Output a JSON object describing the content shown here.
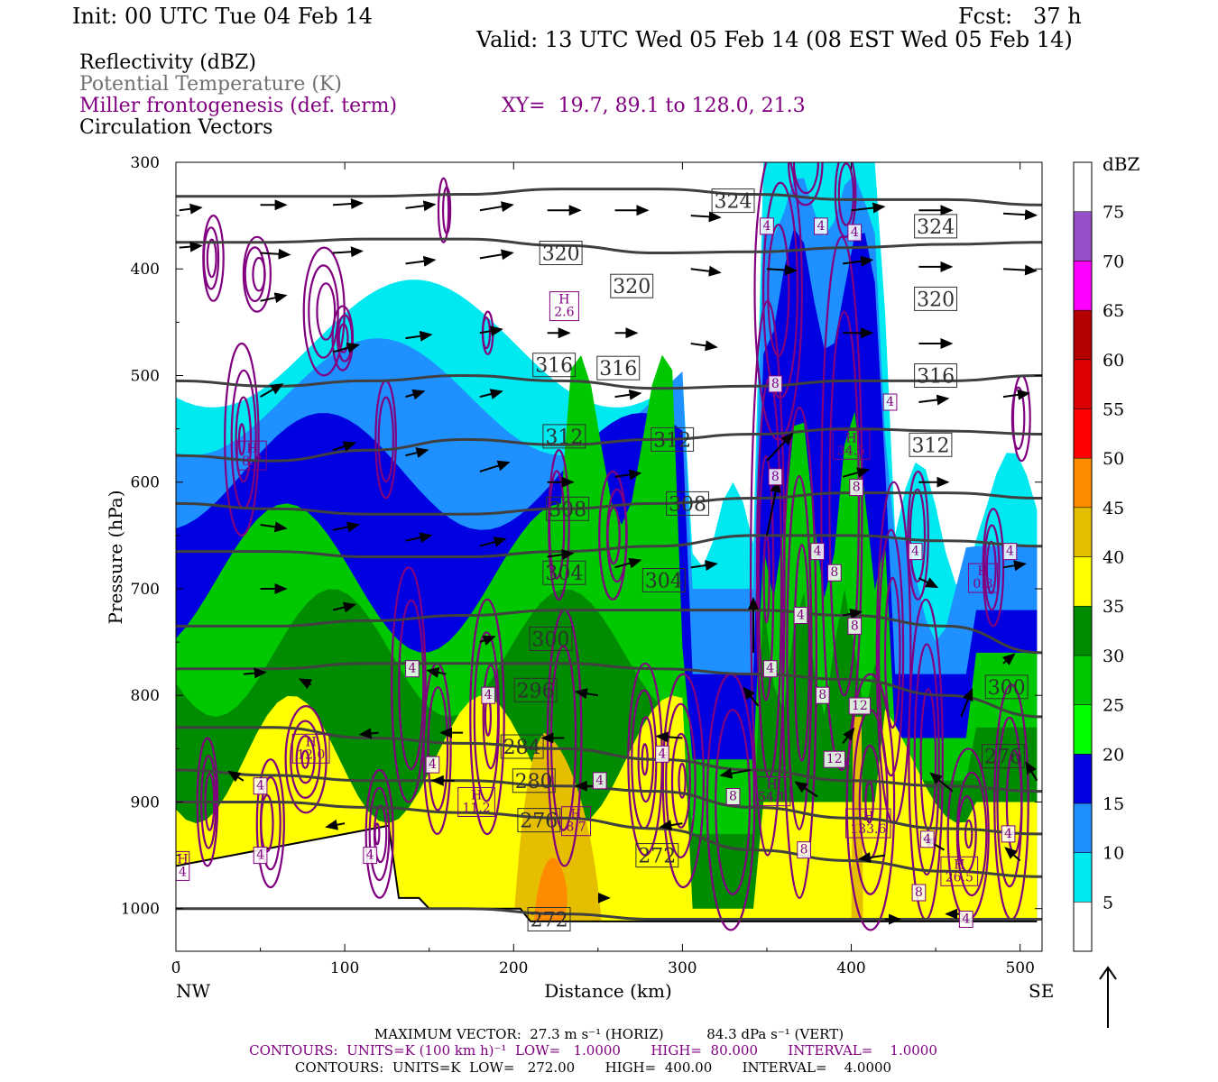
{
  "header": {
    "init": "Init: 00 UTC Tue 04 Feb 14",
    "fcst": "Fcst:   37 h",
    "valid": "Valid: 13 UTC Wed 05 Feb 14 (08 EST Wed 05 Feb 14)"
  },
  "fields": {
    "reflectivity": "Reflectivity (dBZ)",
    "theta": "Potential Temperature (K)",
    "frontogenesis": "Miller frontogenesis (def. term)",
    "xy": "XY=  19.7, 89.1 to 128.0, 21.3",
    "vectors": "Circulation Vectors"
  },
  "colors": {
    "theta": "#404040",
    "fronto": "#800080",
    "vector": "#000000"
  },
  "colorbar": {
    "title": "dBZ",
    "levels": [
      5,
      10,
      15,
      20,
      25,
      30,
      35,
      40,
      45,
      50,
      55,
      60,
      65,
      70,
      75
    ],
    "colors": [
      "#ffffff",
      "#00e8f0",
      "#1e90ff",
      "#0000e0",
      "#00ff00",
      "#00c800",
      "#008c00",
      "#ffff00",
      "#e6be00",
      "#ff8c00",
      "#ff0000",
      "#dc0000",
      "#b40000",
      "#ff00ff",
      "#9650c8",
      "#ffffff"
    ]
  },
  "footer": {
    "max_vector": "MAXIMUM VECTOR:  27.3 m s⁻¹ (HORIZ)          84.3 dPa s⁻¹ (VERT)",
    "contours1": "CONTOURS:  UNITS=K (100 km h)⁻¹  LOW=   1.0000       HIGH=  80.000       INTERVAL=    1.0000",
    "contours2": "CONTOURS:  UNITS=K  LOW=   272.00       HIGH=  400.00       INTERVAL=    4.0000"
  },
  "chart_data": {
    "type": "cross-section",
    "xlabel": "Distance (km)",
    "ylabel": "Pressure (hPa)",
    "xlim": [
      0,
      513
    ],
    "ylim": [
      1040,
      300
    ],
    "x_ticks": [
      0,
      100,
      200,
      300,
      400,
      500
    ],
    "y_ticks": [
      300,
      400,
      500,
      600,
      700,
      800,
      900,
      1000
    ],
    "x_end_labels": {
      "left": "NW",
      "right": "SE"
    },
    "theta_isentropes": [
      {
        "label": "324",
        "p": [
          332,
          332,
          332,
          330,
          325,
          325,
          330,
          335,
          335,
          340
        ]
      },
      {
        "label": "320",
        "p": [
          375,
          375,
          372,
          372,
          378,
          385,
          384,
          380,
          377,
          375
        ]
      },
      {
        "label": "316",
        "p": [
          505,
          510,
          505,
          500,
          505,
          512,
          510,
          505,
          505,
          500
        ]
      },
      {
        "label": "312",
        "p": [
          575,
          580,
          570,
          560,
          565,
          560,
          555,
          550,
          552,
          555
        ]
      },
      {
        "label": "308",
        "p": [
          620,
          625,
          630,
          630,
          625,
          620,
          615,
          610,
          610,
          615
        ]
      },
      {
        "label": "304",
        "p": [
          665,
          665,
          670,
          670,
          665,
          660,
          650,
          650,
          655,
          660
        ]
      },
      {
        "label": "300",
        "p": [
          735,
          735,
          730,
          725,
          720,
          720,
          720,
          725,
          735,
          760
        ]
      },
      {
        "label": "296",
        "p": [
          775,
          775,
          770,
          770,
          770,
          775,
          780,
          785,
          800,
          820
        ]
      },
      {
        "label": "284",
        "p": [
          830,
          830,
          840,
          845,
          850,
          860,
          870,
          880,
          885,
          890
        ]
      },
      {
        "label": "280",
        "p": [
          870,
          875,
          880,
          880,
          885,
          890,
          905,
          915,
          925,
          930
        ]
      },
      {
        "label": "276",
        "p": [
          900,
          900,
          905,
          910,
          915,
          925,
          945,
          955,
          965,
          970
        ]
      },
      {
        "label": "272",
        "p": [
          1000,
          1000,
          1000,
          1000,
          1005,
          1010,
          1010,
          1010,
          1010,
          1010
        ]
      }
    ],
    "theta_x": [
      0,
      57,
      114,
      171,
      228,
      285,
      342,
      399,
      456,
      513
    ],
    "theta_labels_shown": [
      {
        "text": "324",
        "x": 330,
        "p": 336
      },
      {
        "text": "324",
        "x": 450,
        "p": 360
      },
      {
        "text": "320",
        "x": 228,
        "p": 385
      },
      {
        "text": "320",
        "x": 270,
        "p": 416
      },
      {
        "text": "320",
        "x": 450,
        "p": 428
      },
      {
        "text": "316",
        "x": 224,
        "p": 490
      },
      {
        "text": "316",
        "x": 262,
        "p": 493
      },
      {
        "text": "316",
        "x": 450,
        "p": 500
      },
      {
        "text": "312",
        "x": 230,
        "p": 557
      },
      {
        "text": "312",
        "x": 294,
        "p": 560
      },
      {
        "text": "312",
        "x": 447,
        "p": 565
      },
      {
        "text": "308",
        "x": 232,
        "p": 625
      },
      {
        "text": "308",
        "x": 303,
        "p": 620
      },
      {
        "text": "304",
        "x": 230,
        "p": 685
      },
      {
        "text": "304",
        "x": 289,
        "p": 692
      },
      {
        "text": "300",
        "x": 222,
        "p": 747
      },
      {
        "text": "300",
        "x": 492,
        "p": 792
      },
      {
        "text": "296",
        "x": 213,
        "p": 795
      },
      {
        "text": "284",
        "x": 205,
        "p": 848
      },
      {
        "text": "280",
        "x": 212,
        "p": 880
      },
      {
        "text": "276",
        "x": 215,
        "p": 917
      },
      {
        "text": "272",
        "x": 285,
        "p": 950
      },
      {
        "text": "272",
        "x": 221,
        "p": 1010
      },
      {
        "text": "276",
        "x": 490,
        "p": 857
      }
    ],
    "fronto_extrema": [
      {
        "text": "H\n2.6",
        "x": 230,
        "p": 435
      },
      {
        "text": "H\n12.0",
        "x": 80,
        "p": 850
      },
      {
        "text": "H\n11.2",
        "x": 178,
        "p": 900
      },
      {
        "text": "H\n8.7",
        "x": 237,
        "p": 918
      },
      {
        "text": "H\n54.1",
        "x": 353,
        "p": 890
      },
      {
        "text": "H\n34.5",
        "x": 400,
        "p": 565
      },
      {
        "text": "H\n133.6",
        "x": 410,
        "p": 920
      },
      {
        "text": "H\n26.5",
        "x": 464,
        "p": 965
      },
      {
        "text": "H\n4",
        "x": 4,
        "p": 960
      },
      {
        "text": "H\n8.7",
        "x": 45,
        "p": 575
      },
      {
        "text": "H\n0.3",
        "x": 478,
        "p": 690
      }
    ],
    "fronto_labels_4": [
      {
        "x": 350,
        "p": 360
      },
      {
        "x": 382,
        "p": 360
      },
      {
        "x": 402,
        "p": 366
      },
      {
        "x": 423,
        "p": 525
      },
      {
        "x": 380,
        "p": 665
      },
      {
        "x": 438,
        "p": 665
      },
      {
        "x": 494,
        "p": 665
      },
      {
        "x": 370,
        "p": 725
      },
      {
        "x": 352,
        "p": 775
      },
      {
        "x": 140,
        "p": 775
      },
      {
        "x": 185,
        "p": 800
      },
      {
        "x": 152,
        "p": 865
      },
      {
        "x": 50,
        "p": 885
      },
      {
        "x": 50,
        "p": 950
      },
      {
        "x": 115,
        "p": 950
      },
      {
        "x": 251,
        "p": 880
      },
      {
        "x": 288,
        "p": 855
      },
      {
        "x": 445,
        "p": 935
      },
      {
        "x": 493,
        "p": 930
      },
      {
        "x": 468,
        "p": 1010
      }
    ],
    "fronto_labels_8": [
      {
        "x": 355,
        "p": 595
      },
      {
        "x": 403,
        "p": 605
      },
      {
        "x": 390,
        "p": 685
      },
      {
        "x": 402,
        "p": 735
      },
      {
        "x": 383,
        "p": 800
      },
      {
        "x": 330,
        "p": 895
      },
      {
        "x": 372,
        "p": 945
      },
      {
        "x": 440,
        "p": 985
      },
      {
        "x": 355,
        "p": 508
      }
    ],
    "fronto_labels_12": [
      {
        "x": 405,
        "p": 810
      },
      {
        "x": 390,
        "p": 860
      }
    ],
    "vector_samples": [
      {
        "x": 2,
        "p": 345,
        "u": 12,
        "w": 3
      },
      {
        "x": 50,
        "p": 340,
        "u": 14,
        "w": 0
      },
      {
        "x": 93,
        "p": 340,
        "u": 16,
        "w": 2
      },
      {
        "x": 136,
        "p": 343,
        "u": 16,
        "w": 4
      },
      {
        "x": 180,
        "p": 345,
        "u": 18,
        "w": 6
      },
      {
        "x": 220,
        "p": 345,
        "u": 18,
        "w": 0
      },
      {
        "x": 260,
        "p": 345,
        "u": 18,
        "w": 0
      },
      {
        "x": 305,
        "p": 350,
        "u": 16,
        "w": -2
      },
      {
        "x": 400,
        "p": 345,
        "u": 18,
        "w": 4
      },
      {
        "x": 440,
        "p": 345,
        "u": 18,
        "w": 0
      },
      {
        "x": 490,
        "p": 348,
        "u": 18,
        "w": -2
      },
      {
        "x": 2,
        "p": 380,
        "u": 12,
        "w": 2
      },
      {
        "x": 50,
        "p": 385,
        "u": 16,
        "w": -2
      },
      {
        "x": 93,
        "p": 385,
        "u": 16,
        "w": 2
      },
      {
        "x": 136,
        "p": 395,
        "u": 16,
        "w": 4
      },
      {
        "x": 180,
        "p": 390,
        "u": 18,
        "w": 6
      },
      {
        "x": 305,
        "p": 400,
        "u": 16,
        "w": -4
      },
      {
        "x": 350,
        "p": 400,
        "u": 16,
        "w": -2
      },
      {
        "x": 395,
        "p": 395,
        "u": 16,
        "w": 4
      },
      {
        "x": 440,
        "p": 398,
        "u": 18,
        "w": 0
      },
      {
        "x": 490,
        "p": 400,
        "u": 18,
        "w": -2
      },
      {
        "x": 50,
        "p": 430,
        "u": 14,
        "w": 6
      },
      {
        "x": 93,
        "p": 478,
        "u": 14,
        "w": 8
      },
      {
        "x": 136,
        "p": 465,
        "u": 14,
        "w": 4
      },
      {
        "x": 180,
        "p": 460,
        "u": 12,
        "w": 4
      },
      {
        "x": 220,
        "p": 460,
        "u": 12,
        "w": 0
      },
      {
        "x": 260,
        "p": 460,
        "u": 12,
        "w": 0
      },
      {
        "x": 305,
        "p": 470,
        "u": 14,
        "w": -4
      },
      {
        "x": 395,
        "p": 460,
        "u": 16,
        "w": 0
      },
      {
        "x": 440,
        "p": 470,
        "u": 18,
        "w": 0
      },
      {
        "x": 50,
        "p": 520,
        "u": 12,
        "w": 14
      },
      {
        "x": 136,
        "p": 520,
        "u": 10,
        "w": 6
      },
      {
        "x": 180,
        "p": 520,
        "u": 12,
        "w": 6
      },
      {
        "x": 260,
        "p": 520,
        "u": 14,
        "w": 4
      },
      {
        "x": 440,
        "p": 525,
        "u": 16,
        "w": 4
      },
      {
        "x": 490,
        "p": 520,
        "u": 14,
        "w": 4
      },
      {
        "x": 93,
        "p": 570,
        "u": 12,
        "w": 8
      },
      {
        "x": 136,
        "p": 575,
        "u": 12,
        "w": 6
      },
      {
        "x": 180,
        "p": 590,
        "u": 16,
        "w": 10
      },
      {
        "x": 220,
        "p": 600,
        "u": 14,
        "w": 0
      },
      {
        "x": 260,
        "p": 595,
        "u": 14,
        "w": 4
      },
      {
        "x": 350,
        "p": 580,
        "u": 14,
        "w": 30
      },
      {
        "x": 395,
        "p": 595,
        "u": 14,
        "w": 8
      },
      {
        "x": 440,
        "p": 600,
        "u": 16,
        "w": 0
      },
      {
        "x": 50,
        "p": 640,
        "u": 14,
        "w": -4
      },
      {
        "x": 93,
        "p": 645,
        "u": 14,
        "w": 6
      },
      {
        "x": 136,
        "p": 655,
        "u": 14,
        "w": 6
      },
      {
        "x": 180,
        "p": 660,
        "u": 14,
        "w": 8
      },
      {
        "x": 220,
        "p": 670,
        "u": 14,
        "w": 4
      },
      {
        "x": 260,
        "p": 680,
        "u": 14,
        "w": 8
      },
      {
        "x": 305,
        "p": 680,
        "u": 14,
        "w": 4
      },
      {
        "x": 350,
        "p": 650,
        "u": 6,
        "w": 60
      },
      {
        "x": 440,
        "p": 690,
        "u": 10,
        "w": -10
      },
      {
        "x": 490,
        "p": 680,
        "u": 12,
        "w": 4
      },
      {
        "x": 50,
        "p": 700,
        "u": 14,
        "w": 0
      },
      {
        "x": 93,
        "p": 720,
        "u": 12,
        "w": 6
      },
      {
        "x": 180,
        "p": 750,
        "u": 8,
        "w": 6
      },
      {
        "x": 342,
        "p": 760,
        "u": 0,
        "w": 60
      },
      {
        "x": 395,
        "p": 725,
        "u": 10,
        "w": 4
      },
      {
        "x": 490,
        "p": 770,
        "u": 6,
        "w": 10
      },
      {
        "x": 40,
        "p": 780,
        "u": 12,
        "w": 2
      },
      {
        "x": 80,
        "p": 790,
        "u": -6,
        "w": 6
      },
      {
        "x": 160,
        "p": 780,
        "u": -10,
        "w": 4
      },
      {
        "x": 250,
        "p": 800,
        "u": -12,
        "w": 4
      },
      {
        "x": 345,
        "p": 810,
        "u": -8,
        "w": 20
      },
      {
        "x": 395,
        "p": 845,
        "u": 6,
        "w": 16
      },
      {
        "x": 465,
        "p": 820,
        "u": 6,
        "w": 30
      },
      {
        "x": 510,
        "p": 880,
        "u": -6,
        "w": 20
      },
      {
        "x": 40,
        "p": 880,
        "u": -8,
        "w": 10
      },
      {
        "x": 120,
        "p": 835,
        "u": -10,
        "w": -2
      },
      {
        "x": 170,
        "p": 835,
        "u": -12,
        "w": 0
      },
      {
        "x": 230,
        "p": 840,
        "u": -12,
        "w": 0
      },
      {
        "x": 300,
        "p": 840,
        "u": -14,
        "w": 2
      },
      {
        "x": 340,
        "p": 870,
        "u": -16,
        "w": -6
      },
      {
        "x": 380,
        "p": 895,
        "u": -12,
        "w": 16
      },
      {
        "x": 460,
        "p": 890,
        "u": -12,
        "w": 20
      },
      {
        "x": 100,
        "p": 920,
        "u": -10,
        "w": -4
      },
      {
        "x": 165,
        "p": 880,
        "u": -12,
        "w": 0
      },
      {
        "x": 250,
        "p": 885,
        "u": -12,
        "w": 0
      },
      {
        "x": 300,
        "p": 920,
        "u": -12,
        "w": -4
      },
      {
        "x": 420,
        "p": 950,
        "u": -14,
        "w": -4
      },
      {
        "x": 455,
        "p": 945,
        "u": -12,
        "w": 14
      },
      {
        "x": 500,
        "p": 955,
        "u": -8,
        "w": 14
      },
      {
        "x": 250,
        "p": 990,
        "u": 6,
        "w": 0
      },
      {
        "x": 420,
        "p": 1010,
        "u": 8,
        "w": 0
      },
      {
        "x": 465,
        "p": 1005,
        "u": -8,
        "w": 0
      }
    ]
  }
}
